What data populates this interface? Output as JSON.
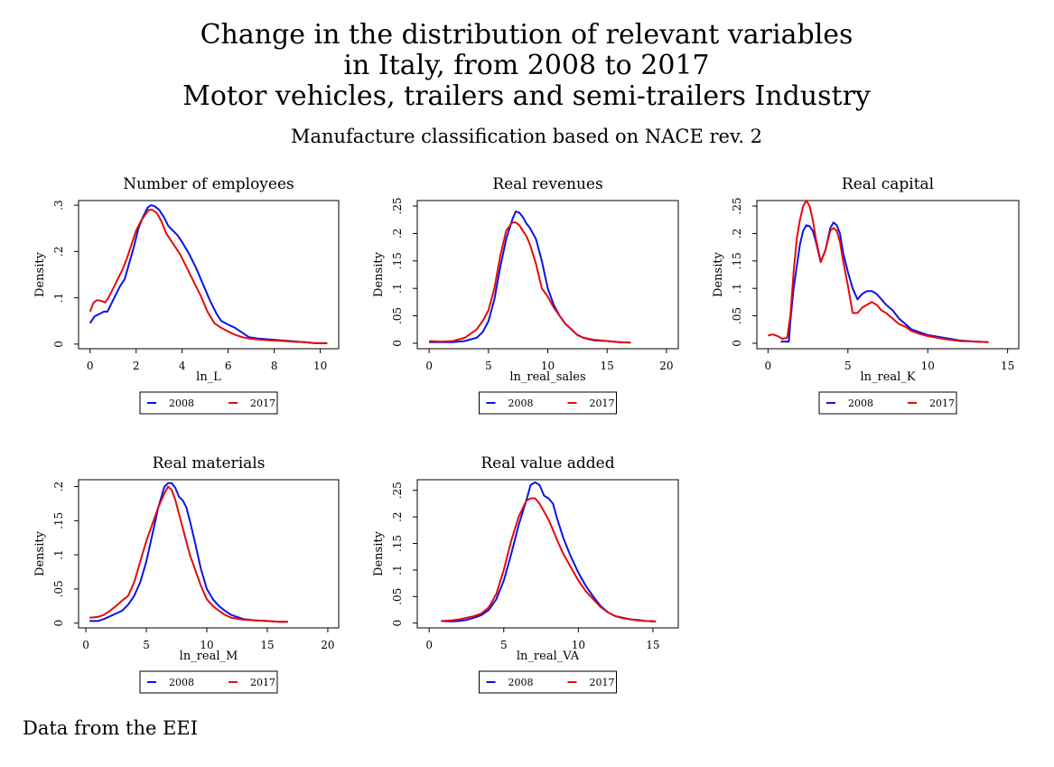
{
  "figure": {
    "title_lines": [
      "Change in the distribution of relevant variables",
      "in Italy, from 2008 to 2017",
      "Motor vehicles, trailers and semi-trailers Industry"
    ],
    "subtitle": "Manufacture classification based on NACE rev. 2",
    "note": "Data from the EEI"
  },
  "colors": {
    "s2008": "#0a14e6",
    "s2017": "#e60a0a",
    "axis": "#000000"
  },
  "legend_labels": [
    "2008",
    "2017"
  ],
  "chart_data": [
    {
      "type": "line",
      "title": "Number of employees",
      "xlabel": "ln_L",
      "ylabel": "Density",
      "xlim": [
        -0.5,
        10.8
      ],
      "ylim": [
        -0.01,
        0.31
      ],
      "xticks": [
        0,
        2,
        4,
        6,
        8,
        10
      ],
      "xtick_labels": [
        "0",
        "2",
        "4",
        "6",
        "8",
        "10"
      ],
      "yticks": [
        0,
        0.1,
        0.2,
        0.3
      ],
      "ytick_labels": [
        "0",
        ".1",
        ".2",
        ".3"
      ],
      "legend": "bottom",
      "series": [
        {
          "name": "2008",
          "color_key": "s2008",
          "x": [
            0,
            0.2,
            0.4,
            0.6,
            0.75,
            0.9,
            1.1,
            1.3,
            1.5,
            1.7,
            1.9,
            2.1,
            2.3,
            2.5,
            2.65,
            2.8,
            3.0,
            3.2,
            3.4,
            3.6,
            3.8,
            4.0,
            4.3,
            4.6,
            4.9,
            5.2,
            5.5,
            5.7,
            6.0,
            6.3,
            6.6,
            6.9,
            7.3,
            7.8,
            8.3,
            8.8,
            9.3,
            9.8,
            10.3
          ],
          "y": [
            0.045,
            0.06,
            0.065,
            0.07,
            0.07,
            0.085,
            0.105,
            0.125,
            0.14,
            0.175,
            0.21,
            0.25,
            0.275,
            0.295,
            0.3,
            0.298,
            0.29,
            0.275,
            0.255,
            0.245,
            0.235,
            0.22,
            0.195,
            0.165,
            0.13,
            0.095,
            0.065,
            0.05,
            0.042,
            0.035,
            0.025,
            0.015,
            0.012,
            0.01,
            0.008,
            0.006,
            0.004,
            0.002,
            0.002
          ]
        },
        {
          "name": "2017",
          "color_key": "s2017",
          "x": [
            0,
            0.15,
            0.3,
            0.5,
            0.65,
            0.8,
            1.0,
            1.2,
            1.4,
            1.6,
            1.8,
            2.0,
            2.2,
            2.4,
            2.55,
            2.7,
            2.9,
            3.1,
            3.3,
            3.5,
            3.7,
            3.9,
            4.2,
            4.5,
            4.8,
            5.1,
            5.4,
            5.7,
            6.0,
            6.3,
            6.6,
            6.9,
            7.3,
            7.8,
            8.3,
            8.8,
            9.3,
            9.8,
            10.3
          ],
          "y": [
            0.07,
            0.09,
            0.095,
            0.093,
            0.09,
            0.1,
            0.12,
            0.14,
            0.16,
            0.185,
            0.215,
            0.245,
            0.265,
            0.28,
            0.29,
            0.29,
            0.283,
            0.265,
            0.24,
            0.225,
            0.21,
            0.195,
            0.165,
            0.135,
            0.105,
            0.07,
            0.045,
            0.035,
            0.027,
            0.02,
            0.015,
            0.012,
            0.01,
            0.008,
            0.007,
            0.005,
            0.004,
            0.002,
            0.002
          ]
        }
      ]
    },
    {
      "type": "line",
      "title": "Real revenues",
      "xlabel": "ln_real_sales",
      "ylabel": "Density",
      "xlim": [
        -1,
        21
      ],
      "ylim": [
        -0.01,
        0.26
      ],
      "xticks": [
        0,
        5,
        10,
        15,
        20
      ],
      "xtick_labels": [
        "0",
        "5",
        "10",
        "15",
        "20"
      ],
      "yticks": [
        0,
        0.05,
        0.1,
        0.15,
        0.2,
        0.25
      ],
      "ytick_labels": [
        "0",
        ".05",
        ".1",
        ".15",
        ".2",
        ".25"
      ],
      "legend": "bottom",
      "series": [
        {
          "name": "2008",
          "color_key": "s2008",
          "x": [
            0,
            1,
            2,
            3,
            4,
            4.5,
            5,
            5.5,
            6,
            6.5,
            7,
            7.3,
            7.6,
            7.9,
            8.2,
            8.5,
            9,
            9.5,
            10,
            10.5,
            11,
            11.5,
            12,
            12.5,
            13,
            13.5,
            14,
            15,
            16,
            17
          ],
          "y": [
            0.002,
            0.002,
            0.002,
            0.004,
            0.01,
            0.02,
            0.04,
            0.08,
            0.14,
            0.19,
            0.225,
            0.24,
            0.238,
            0.23,
            0.218,
            0.21,
            0.19,
            0.15,
            0.1,
            0.07,
            0.05,
            0.035,
            0.025,
            0.015,
            0.01,
            0.007,
            0.005,
            0.004,
            0.002,
            0.001
          ]
        },
        {
          "name": "2017",
          "color_key": "s2017",
          "x": [
            0,
            1,
            2,
            3,
            4,
            4.5,
            5,
            5.5,
            6,
            6.5,
            7,
            7.3,
            7.6,
            7.9,
            8.2,
            8.5,
            9,
            9.5,
            10,
            10.5,
            11,
            11.5,
            12,
            12.5,
            13,
            13.5,
            14,
            15,
            16,
            17
          ],
          "y": [
            0.004,
            0.003,
            0.004,
            0.01,
            0.025,
            0.04,
            0.06,
            0.1,
            0.16,
            0.205,
            0.22,
            0.22,
            0.215,
            0.205,
            0.195,
            0.18,
            0.145,
            0.1,
            0.085,
            0.065,
            0.05,
            0.035,
            0.025,
            0.015,
            0.01,
            0.008,
            0.006,
            0.004,
            0.002,
            0.001
          ]
        }
      ]
    },
    {
      "type": "line",
      "title": "Real capital",
      "xlabel": "ln_real_K",
      "ylabel": "Density",
      "xlim": [
        -0.7,
        15.7
      ],
      "ylim": [
        -0.01,
        0.26
      ],
      "xticks": [
        0,
        5,
        10,
        15
      ],
      "xtick_labels": [
        "0",
        "5",
        "10",
        "15"
      ],
      "yticks": [
        0,
        0.05,
        0.1,
        0.15,
        0.2,
        0.25
      ],
      "ytick_labels": [
        "0",
        ".05",
        ".1",
        ".15",
        ".2",
        ".25"
      ],
      "legend": "bottom",
      "series": [
        {
          "name": "2008",
          "color_key": "s2008",
          "x": [
            0.8,
            1.3,
            1.4,
            1.6,
            1.8,
            2.0,
            2.2,
            2.4,
            2.6,
            2.8,
            3.0,
            3.3,
            3.6,
            3.9,
            4.1,
            4.3,
            4.5,
            4.7,
            5.0,
            5.3,
            5.6,
            5.9,
            6.2,
            6.5,
            6.8,
            7.1,
            7.4,
            7.8,
            8.2,
            8.6,
            9.0,
            9.5,
            10,
            11,
            12,
            13,
            13.8
          ],
          "y": [
            0.003,
            0.003,
            0.04,
            0.1,
            0.14,
            0.18,
            0.205,
            0.215,
            0.213,
            0.205,
            0.185,
            0.148,
            0.17,
            0.21,
            0.22,
            0.215,
            0.2,
            0.165,
            0.13,
            0.1,
            0.08,
            0.09,
            0.095,
            0.095,
            0.09,
            0.08,
            0.07,
            0.06,
            0.045,
            0.035,
            0.025,
            0.02,
            0.015,
            0.01,
            0.005,
            0.003,
            0.002
          ]
        },
        {
          "name": "2017",
          "color_key": "s2017",
          "x": [
            0,
            0.3,
            0.6,
            0.9,
            1.2,
            1.4,
            1.6,
            1.8,
            2.0,
            2.2,
            2.4,
            2.6,
            2.8,
            3.0,
            3.3,
            3.6,
            3.9,
            4.1,
            4.3,
            4.5,
            4.7,
            5.0,
            5.3,
            5.6,
            5.9,
            6.2,
            6.5,
            6.8,
            7.1,
            7.4,
            7.8,
            8.2,
            8.6,
            9.0,
            9.5,
            10,
            11,
            12,
            13,
            13.8
          ],
          "y": [
            0.014,
            0.016,
            0.013,
            0.008,
            0.01,
            0.05,
            0.13,
            0.19,
            0.225,
            0.25,
            0.26,
            0.25,
            0.225,
            0.19,
            0.148,
            0.17,
            0.205,
            0.21,
            0.205,
            0.185,
            0.15,
            0.105,
            0.055,
            0.055,
            0.065,
            0.07,
            0.075,
            0.07,
            0.06,
            0.055,
            0.045,
            0.035,
            0.03,
            0.022,
            0.017,
            0.013,
            0.008,
            0.004,
            0.003,
            0.002
          ]
        }
      ]
    },
    {
      "type": "line",
      "title": "Real materials",
      "xlabel": "ln_real_M",
      "ylabel": "Density",
      "xlim": [
        -0.6,
        20.9
      ],
      "ylim": [
        -0.007,
        0.21
      ],
      "xticks": [
        0,
        5,
        10,
        15,
        20
      ],
      "xtick_labels": [
        "0",
        "5",
        "10",
        "15",
        "20"
      ],
      "yticks": [
        0,
        0.05,
        0.1,
        0.15,
        0.2
      ],
      "ytick_labels": [
        "0",
        ".05",
        ".1",
        ".15",
        ".2"
      ],
      "legend": "bottom",
      "series": [
        {
          "name": "2008",
          "color_key": "s2008",
          "x": [
            0.3,
            1,
            1.5,
            2,
            2.5,
            3,
            3.5,
            4,
            4.5,
            5,
            5.5,
            6,
            6.5,
            6.8,
            7.1,
            7.4,
            7.7,
            8.0,
            8.3,
            8.6,
            9,
            9.5,
            10,
            10.5,
            11,
            11.5,
            12,
            13,
            14,
            15,
            16,
            16.7
          ],
          "y": [
            0.003,
            0.003,
            0.006,
            0.01,
            0.014,
            0.018,
            0.027,
            0.04,
            0.06,
            0.09,
            0.13,
            0.17,
            0.2,
            0.205,
            0.205,
            0.198,
            0.185,
            0.18,
            0.17,
            0.15,
            0.12,
            0.08,
            0.05,
            0.035,
            0.025,
            0.018,
            0.012,
            0.006,
            0.004,
            0.003,
            0.002,
            0.002
          ]
        },
        {
          "name": "2017",
          "color_key": "s2017",
          "x": [
            0.3,
            1,
            1.5,
            2,
            2.5,
            3,
            3.5,
            4,
            4.5,
            5,
            5.5,
            6,
            6.5,
            6.8,
            7.1,
            7.4,
            7.7,
            8.0,
            8.3,
            8.6,
            9,
            9.5,
            10,
            10.5,
            11,
            11.5,
            12,
            13,
            14,
            15,
            16,
            16.7
          ],
          "y": [
            0.008,
            0.009,
            0.012,
            0.018,
            0.025,
            0.033,
            0.04,
            0.06,
            0.09,
            0.12,
            0.145,
            0.17,
            0.19,
            0.2,
            0.195,
            0.18,
            0.16,
            0.14,
            0.12,
            0.1,
            0.08,
            0.055,
            0.035,
            0.025,
            0.018,
            0.012,
            0.008,
            0.005,
            0.004,
            0.003,
            0.002,
            0.002
          ]
        }
      ]
    },
    {
      "type": "line",
      "title": "Real value added",
      "xlabel": "ln_real_VA",
      "ylabel": "Density",
      "xlim": [
        -0.8,
        16.7
      ],
      "ylim": [
        -0.009,
        0.27
      ],
      "xticks": [
        0,
        5,
        10,
        15
      ],
      "xtick_labels": [
        "0",
        "5",
        "10",
        "15"
      ],
      "yticks": [
        0,
        0.05,
        0.1,
        0.15,
        0.2,
        0.25
      ],
      "ytick_labels": [
        "0",
        ".05",
        ".1",
        ".15",
        ".2",
        ".25"
      ],
      "legend": "bottom",
      "series": [
        {
          "name": "2008",
          "color_key": "s2008",
          "x": [
            0.8,
            1.5,
            2,
            2.5,
            3,
            3.5,
            4,
            4.5,
            5,
            5.5,
            6,
            6.5,
            6.8,
            7.1,
            7.4,
            7.7,
            8.0,
            8.3,
            8.6,
            9,
            9.5,
            10,
            10.5,
            11,
            11.5,
            12,
            12.5,
            13,
            13.5,
            14,
            14.5,
            15.2
          ],
          "y": [
            0.004,
            0.003,
            0.004,
            0.006,
            0.01,
            0.015,
            0.025,
            0.045,
            0.08,
            0.13,
            0.185,
            0.23,
            0.26,
            0.265,
            0.26,
            0.24,
            0.235,
            0.225,
            0.195,
            0.16,
            0.125,
            0.095,
            0.07,
            0.05,
            0.032,
            0.02,
            0.013,
            0.01,
            0.007,
            0.006,
            0.004,
            0.003
          ]
        },
        {
          "name": "2017",
          "color_key": "s2017",
          "x": [
            0.8,
            1.5,
            2,
            2.5,
            3,
            3.5,
            4,
            4.5,
            5,
            5.5,
            6,
            6.5,
            6.8,
            7.1,
            7.4,
            7.7,
            8.0,
            8.3,
            8.6,
            9,
            9.5,
            10,
            10.5,
            11,
            11.5,
            12,
            12.5,
            13,
            13.5,
            14,
            14.5,
            15.2
          ],
          "y": [
            0.004,
            0.005,
            0.007,
            0.01,
            0.013,
            0.018,
            0.03,
            0.055,
            0.1,
            0.155,
            0.2,
            0.23,
            0.235,
            0.235,
            0.225,
            0.21,
            0.195,
            0.175,
            0.155,
            0.13,
            0.105,
            0.08,
            0.06,
            0.045,
            0.03,
            0.02,
            0.013,
            0.009,
            0.007,
            0.005,
            0.004,
            0.003
          ]
        }
      ]
    }
  ]
}
